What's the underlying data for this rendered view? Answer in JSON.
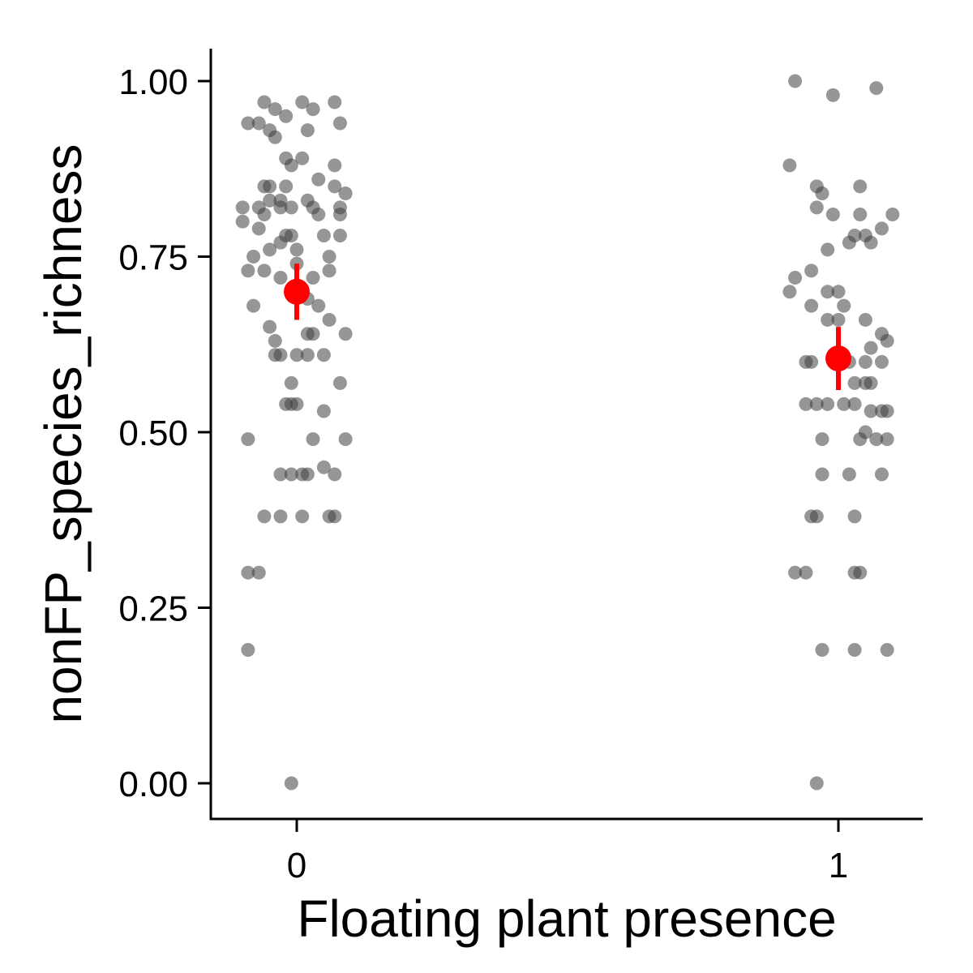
{
  "chart_data": {
    "type": "scatter",
    "xlabel": "Floating plant presence",
    "ylabel": "nonFP_species_richness",
    "x_categories": [
      "0",
      "1"
    ],
    "ylim": [
      -0.05,
      1.05
    ],
    "y_ticks": [
      0.0,
      0.25,
      0.5,
      0.75,
      1.0
    ],
    "y_tick_labels": [
      "0.00",
      "0.25",
      "0.50",
      "0.75",
      "1.00"
    ],
    "grid": false,
    "legend": "none",
    "point_color": "#7f7f7f",
    "point_opacity": 0.75,
    "summary_color": "#ff0000",
    "series": [
      {
        "group": "0",
        "points": [
          [
            -0.09,
            0.94
          ],
          [
            -0.06,
            0.97
          ],
          [
            -0.07,
            0.94
          ],
          [
            -0.04,
            0.96
          ],
          [
            -0.05,
            0.93
          ],
          [
            -0.02,
            0.95
          ],
          [
            0.01,
            0.97
          ],
          [
            0.03,
            0.96
          ],
          [
            0.07,
            0.97
          ],
          [
            0.08,
            0.94
          ],
          [
            0.02,
            0.93
          ],
          [
            -0.04,
            0.92
          ],
          [
            -0.02,
            0.89
          ],
          [
            -0.01,
            0.88
          ],
          [
            0.01,
            0.89
          ],
          [
            0.07,
            0.88
          ],
          [
            -0.06,
            0.85
          ],
          [
            -0.05,
            0.85
          ],
          [
            -0.02,
            0.85
          ],
          [
            0.04,
            0.86
          ],
          [
            0.07,
            0.85
          ],
          [
            0.09,
            0.84
          ],
          [
            -0.1,
            0.82
          ],
          [
            -0.07,
            0.82
          ],
          [
            -0.05,
            0.83
          ],
          [
            -0.03,
            0.83
          ],
          [
            -0.01,
            0.82
          ],
          [
            0.02,
            0.83
          ],
          [
            0.03,
            0.82
          ],
          [
            0.04,
            0.81
          ],
          [
            0.08,
            0.82
          ],
          [
            0.08,
            0.81
          ],
          [
            -0.1,
            0.8
          ],
          [
            -0.07,
            0.79
          ],
          [
            -0.06,
            0.81
          ],
          [
            -0.03,
            0.82
          ],
          [
            -0.02,
            0.78
          ],
          [
            -0.01,
            0.78
          ],
          [
            0.05,
            0.78
          ],
          [
            0.06,
            0.75
          ],
          [
            0.08,
            0.78
          ],
          [
            -0.08,
            0.75
          ],
          [
            -0.05,
            0.76
          ],
          [
            -0.03,
            0.77
          ],
          [
            0.0,
            0.76
          ],
          [
            -0.09,
            0.73
          ],
          [
            -0.06,
            0.73
          ],
          [
            -0.03,
            0.72
          ],
          [
            0.0,
            0.74
          ],
          [
            0.03,
            0.72
          ],
          [
            0.06,
            0.73
          ],
          [
            -0.08,
            0.68
          ],
          [
            0.02,
            0.69
          ],
          [
            0.04,
            0.68
          ],
          [
            -0.05,
            0.65
          ],
          [
            0.06,
            0.66
          ],
          [
            -0.04,
            0.63
          ],
          [
            0.02,
            0.64
          ],
          [
            0.03,
            0.64
          ],
          [
            0.09,
            0.64
          ],
          [
            -0.04,
            0.61
          ],
          [
            -0.03,
            0.61
          ],
          [
            0.0,
            0.61
          ],
          [
            0.02,
            0.61
          ],
          [
            0.05,
            0.61
          ],
          [
            -0.01,
            0.57
          ],
          [
            0.08,
            0.57
          ],
          [
            -0.02,
            0.54
          ],
          [
            -0.01,
            0.54
          ],
          [
            0.0,
            0.54
          ],
          [
            0.05,
            0.53
          ],
          [
            -0.09,
            0.49
          ],
          [
            0.03,
            0.49
          ],
          [
            0.09,
            0.49
          ],
          [
            -0.03,
            0.44
          ],
          [
            -0.01,
            0.44
          ],
          [
            0.01,
            0.44
          ],
          [
            0.02,
            0.44
          ],
          [
            0.05,
            0.45
          ],
          [
            0.07,
            0.44
          ],
          [
            -0.06,
            0.38
          ],
          [
            -0.03,
            0.38
          ],
          [
            0.01,
            0.38
          ],
          [
            0.06,
            0.38
          ],
          [
            0.07,
            0.38
          ],
          [
            -0.09,
            0.3
          ],
          [
            -0.07,
            0.3
          ],
          [
            -0.09,
            0.19
          ],
          [
            -0.01,
            0.0
          ]
        ]
      },
      {
        "group": "1",
        "points": [
          [
            0.92,
            1.0
          ],
          [
            0.99,
            0.98
          ],
          [
            1.07,
            0.99
          ],
          [
            0.91,
            0.88
          ],
          [
            0.96,
            0.85
          ],
          [
            0.97,
            0.84
          ],
          [
            0.96,
            0.82
          ],
          [
            0.99,
            0.81
          ],
          [
            1.04,
            0.85
          ],
          [
            1.04,
            0.81
          ],
          [
            1.1,
            0.81
          ],
          [
            1.03,
            0.78
          ],
          [
            1.05,
            0.78
          ],
          [
            1.06,
            0.77
          ],
          [
            1.08,
            0.79
          ],
          [
            0.98,
            0.76
          ],
          [
            1.02,
            0.77
          ],
          [
            0.92,
            0.72
          ],
          [
            0.95,
            0.73
          ],
          [
            0.91,
            0.7
          ],
          [
            0.98,
            0.7
          ],
          [
            1.0,
            0.7
          ],
          [
            0.95,
            0.68
          ],
          [
            1.01,
            0.68
          ],
          [
            0.98,
            0.66
          ],
          [
            1.0,
            0.66
          ],
          [
            1.05,
            0.66
          ],
          [
            1.06,
            0.62
          ],
          [
            1.08,
            0.64
          ],
          [
            1.09,
            0.63
          ],
          [
            0.94,
            0.6
          ],
          [
            0.95,
            0.6
          ],
          [
            1.02,
            0.6
          ],
          [
            1.05,
            0.6
          ],
          [
            1.08,
            0.6
          ],
          [
            1.03,
            0.57
          ],
          [
            1.05,
            0.57
          ],
          [
            1.06,
            0.57
          ],
          [
            0.94,
            0.54
          ],
          [
            0.96,
            0.54
          ],
          [
            0.98,
            0.54
          ],
          [
            1.01,
            0.54
          ],
          [
            1.03,
            0.54
          ],
          [
            1.06,
            0.53
          ],
          [
            1.08,
            0.53
          ],
          [
            1.09,
            0.53
          ],
          [
            0.97,
            0.49
          ],
          [
            1.04,
            0.49
          ],
          [
            1.05,
            0.5
          ],
          [
            1.07,
            0.49
          ],
          [
            1.09,
            0.49
          ],
          [
            0.97,
            0.44
          ],
          [
            1.02,
            0.44
          ],
          [
            1.08,
            0.44
          ],
          [
            0.95,
            0.38
          ],
          [
            0.96,
            0.38
          ],
          [
            1.03,
            0.38
          ],
          [
            0.92,
            0.3
          ],
          [
            0.94,
            0.3
          ],
          [
            1.03,
            0.3
          ],
          [
            1.04,
            0.3
          ],
          [
            0.97,
            0.19
          ],
          [
            1.03,
            0.19
          ],
          [
            1.09,
            0.19
          ],
          [
            0.96,
            0.0
          ]
        ]
      }
    ],
    "summary": [
      {
        "group": "0",
        "x": 0,
        "mean": 0.7,
        "lower": 0.66,
        "upper": 0.74
      },
      {
        "group": "1",
        "x": 1,
        "mean": 0.605,
        "lower": 0.56,
        "upper": 0.65
      }
    ]
  }
}
